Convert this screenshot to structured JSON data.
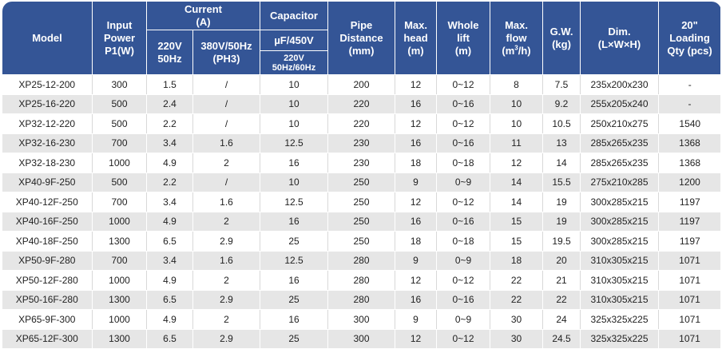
{
  "headers": {
    "model": "Model",
    "input_power": [
      "Input",
      "Power",
      "P1(W)"
    ],
    "current": [
      "Current",
      "(A)"
    ],
    "current_220": [
      "220V",
      "50Hz"
    ],
    "current_380": [
      "380V/50Hz",
      "(PH3)"
    ],
    "capacitor": "Capacitor",
    "capacitor_unit": "µF/450V",
    "capacitor_voltage": [
      "220V",
      "50Hz/60Hz"
    ],
    "pipe_distance": [
      "Pipe",
      "Distance",
      "(mm)"
    ],
    "max_head": [
      "Max.",
      "head",
      "(m)"
    ],
    "whole_lift": [
      "Whole",
      "lift",
      "(m)"
    ],
    "max_flow": [
      "Max.",
      "flow",
      "(m",
      "3",
      "/h)"
    ],
    "gw": [
      "G.W.",
      "(kg)"
    ],
    "dim": [
      "Dim.",
      "(L×W×H)"
    ],
    "loading": [
      "20\"",
      "Loading",
      "Qty (pcs)"
    ]
  },
  "rows": [
    [
      "XP25-12-200",
      "300",
      "1.5",
      "/",
      "10",
      "200",
      "12",
      "0~12",
      "8",
      "7.5",
      "235x200x230",
      "-"
    ],
    [
      "XP25-16-220",
      "500",
      "2.4",
      "/",
      "10",
      "220",
      "16",
      "0~16",
      "10",
      "9.2",
      "255x205x240",
      "-"
    ],
    [
      "XP32-12-220",
      "500",
      "2.2",
      "/",
      "10",
      "220",
      "12",
      "0~12",
      "10",
      "10.5",
      "250x210x275",
      "1540"
    ],
    [
      "XP32-16-230",
      "700",
      "3.4",
      "1.6",
      "12.5",
      "230",
      "16",
      "0~16",
      "11",
      "13",
      "285x265x235",
      "1368"
    ],
    [
      "XP32-18-230",
      "1000",
      "4.9",
      "2",
      "16",
      "230",
      "18",
      "0~18",
      "12",
      "14",
      "285x265x235",
      "1368"
    ],
    [
      "XP40-9F-250",
      "500",
      "2.2",
      "/",
      "10",
      "250",
      "9",
      "0~9",
      "14",
      "15.5",
      "275x210x285",
      "1200"
    ],
    [
      "XP40-12F-250",
      "700",
      "3.4",
      "1.6",
      "12.5",
      "250",
      "12",
      "0~12",
      "14",
      "19",
      "300x285x215",
      "1197"
    ],
    [
      "XP40-16F-250",
      "1000",
      "4.9",
      "2",
      "16",
      "250",
      "16",
      "0~16",
      "15",
      "19",
      "300x285x215",
      "1197"
    ],
    [
      "XP40-18F-250",
      "1300",
      "6.5",
      "2.9",
      "25",
      "250",
      "18",
      "0~18",
      "15",
      "19.5",
      "300x285x215",
      "1197"
    ],
    [
      "XP50-9F-280",
      "700",
      "3.4",
      "1.6",
      "12.5",
      "280",
      "9",
      "0~9",
      "18",
      "20",
      "310x305x215",
      "1071"
    ],
    [
      "XP50-12F-280",
      "1000",
      "4.9",
      "2",
      "16",
      "280",
      "12",
      "0~12",
      "22",
      "21",
      "310x305x215",
      "1071"
    ],
    [
      "XP50-16F-280",
      "1300",
      "6.5",
      "2.9",
      "25",
      "280",
      "16",
      "0~16",
      "22",
      "22",
      "310x305x215",
      "1071"
    ],
    [
      "XP65-9F-300",
      "1000",
      "4.9",
      "2",
      "16",
      "300",
      "9",
      "0~9",
      "30",
      "24",
      "325x325x225",
      "1071"
    ],
    [
      "XP65-12F-300",
      "1300",
      "6.5",
      "2.9",
      "25",
      "300",
      "12",
      "0~12",
      "30",
      "24.5",
      "325x325x225",
      "1071"
    ]
  ],
  "colors": {
    "header_bg": "#345596",
    "header_text": "#ffffff",
    "row_alt_bg": "#e6e6e6"
  }
}
